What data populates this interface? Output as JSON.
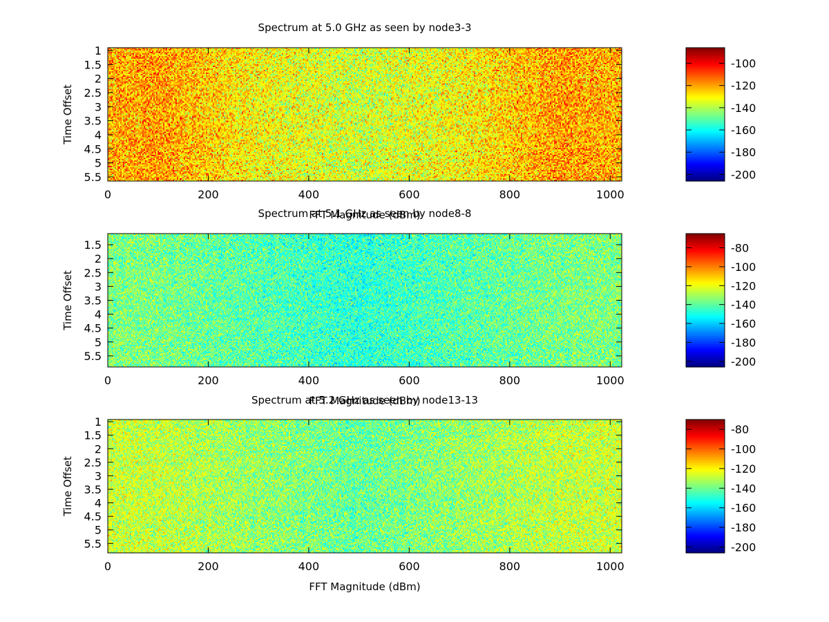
{
  "chart_data": [
    {
      "type": "heatmap",
      "title": "Spectrum at 5.0 GHz as seen by node3-3",
      "xlabel": "FFT Magnitude (dBm)",
      "ylabel": "Time Offset",
      "xlim": [
        0,
        1023
      ],
      "ylim": [
        0.9,
        5.65
      ],
      "x_ticks": [
        0,
        200,
        400,
        600,
        800,
        1000
      ],
      "y_ticks": [
        1,
        1.5,
        2,
        2.5,
        3,
        3.5,
        4,
        4.5,
        5,
        5.5
      ],
      "colorbar": {
        "range": [
          -206,
          -86
        ],
        "ticks": [
          -100,
          -120,
          -140,
          -160,
          -180,
          -200
        ]
      },
      "profile": {
        "x": [
          0,
          100,
          300,
          500,
          700,
          900,
          1023
        ],
        "z": [
          -122,
          -119,
          -131,
          -137,
          -131,
          -119,
          -122
        ]
      },
      "noise_db": 9
    },
    {
      "type": "heatmap",
      "title": "Spectrum at 5.1 GHz as seen by node8-8",
      "xlabel": "FFT Magnitude (dBm)",
      "ylabel": "Time Offset",
      "xlim": [
        0,
        1023
      ],
      "ylim": [
        1.1,
        5.9
      ],
      "x_ticks": [
        0,
        200,
        400,
        600,
        800,
        1000
      ],
      "y_ticks": [
        1.5,
        2,
        2.5,
        3,
        3.5,
        4,
        4.5,
        5,
        5.5
      ],
      "colorbar": {
        "range": [
          -206,
          -65
        ],
        "ticks": [
          -80,
          -100,
          -120,
          -140,
          -160,
          -180,
          -200
        ]
      },
      "profile": {
        "x": [
          0,
          100,
          300,
          500,
          700,
          900,
          1023
        ],
        "z": [
          -135,
          -136,
          -141,
          -147,
          -141,
          -136,
          -135
        ]
      },
      "noise_db": 8
    },
    {
      "type": "heatmap",
      "title": "Spectrum at 5.2 GHz as seen by node13-13",
      "xlabel": "FFT Magnitude (dBm)",
      "ylabel": "Time Offset",
      "xlim": [
        0,
        1023
      ],
      "ylim": [
        0.92,
        5.85
      ],
      "x_ticks": [
        0,
        200,
        400,
        600,
        800,
        1000
      ],
      "y_ticks": [
        1,
        1.5,
        2,
        2.5,
        3,
        3.5,
        4,
        4.5,
        5,
        5.5
      ],
      "colorbar": {
        "range": [
          -206,
          -70
        ],
        "ticks": [
          -80,
          -100,
          -120,
          -140,
          -160,
          -180,
          -200
        ]
      },
      "profile": {
        "x": [
          0,
          100,
          300,
          500,
          700,
          900,
          1023
        ],
        "z": [
          -128,
          -129,
          -135,
          -141,
          -135,
          -129,
          -128
        ]
      },
      "noise_db": 8
    }
  ]
}
